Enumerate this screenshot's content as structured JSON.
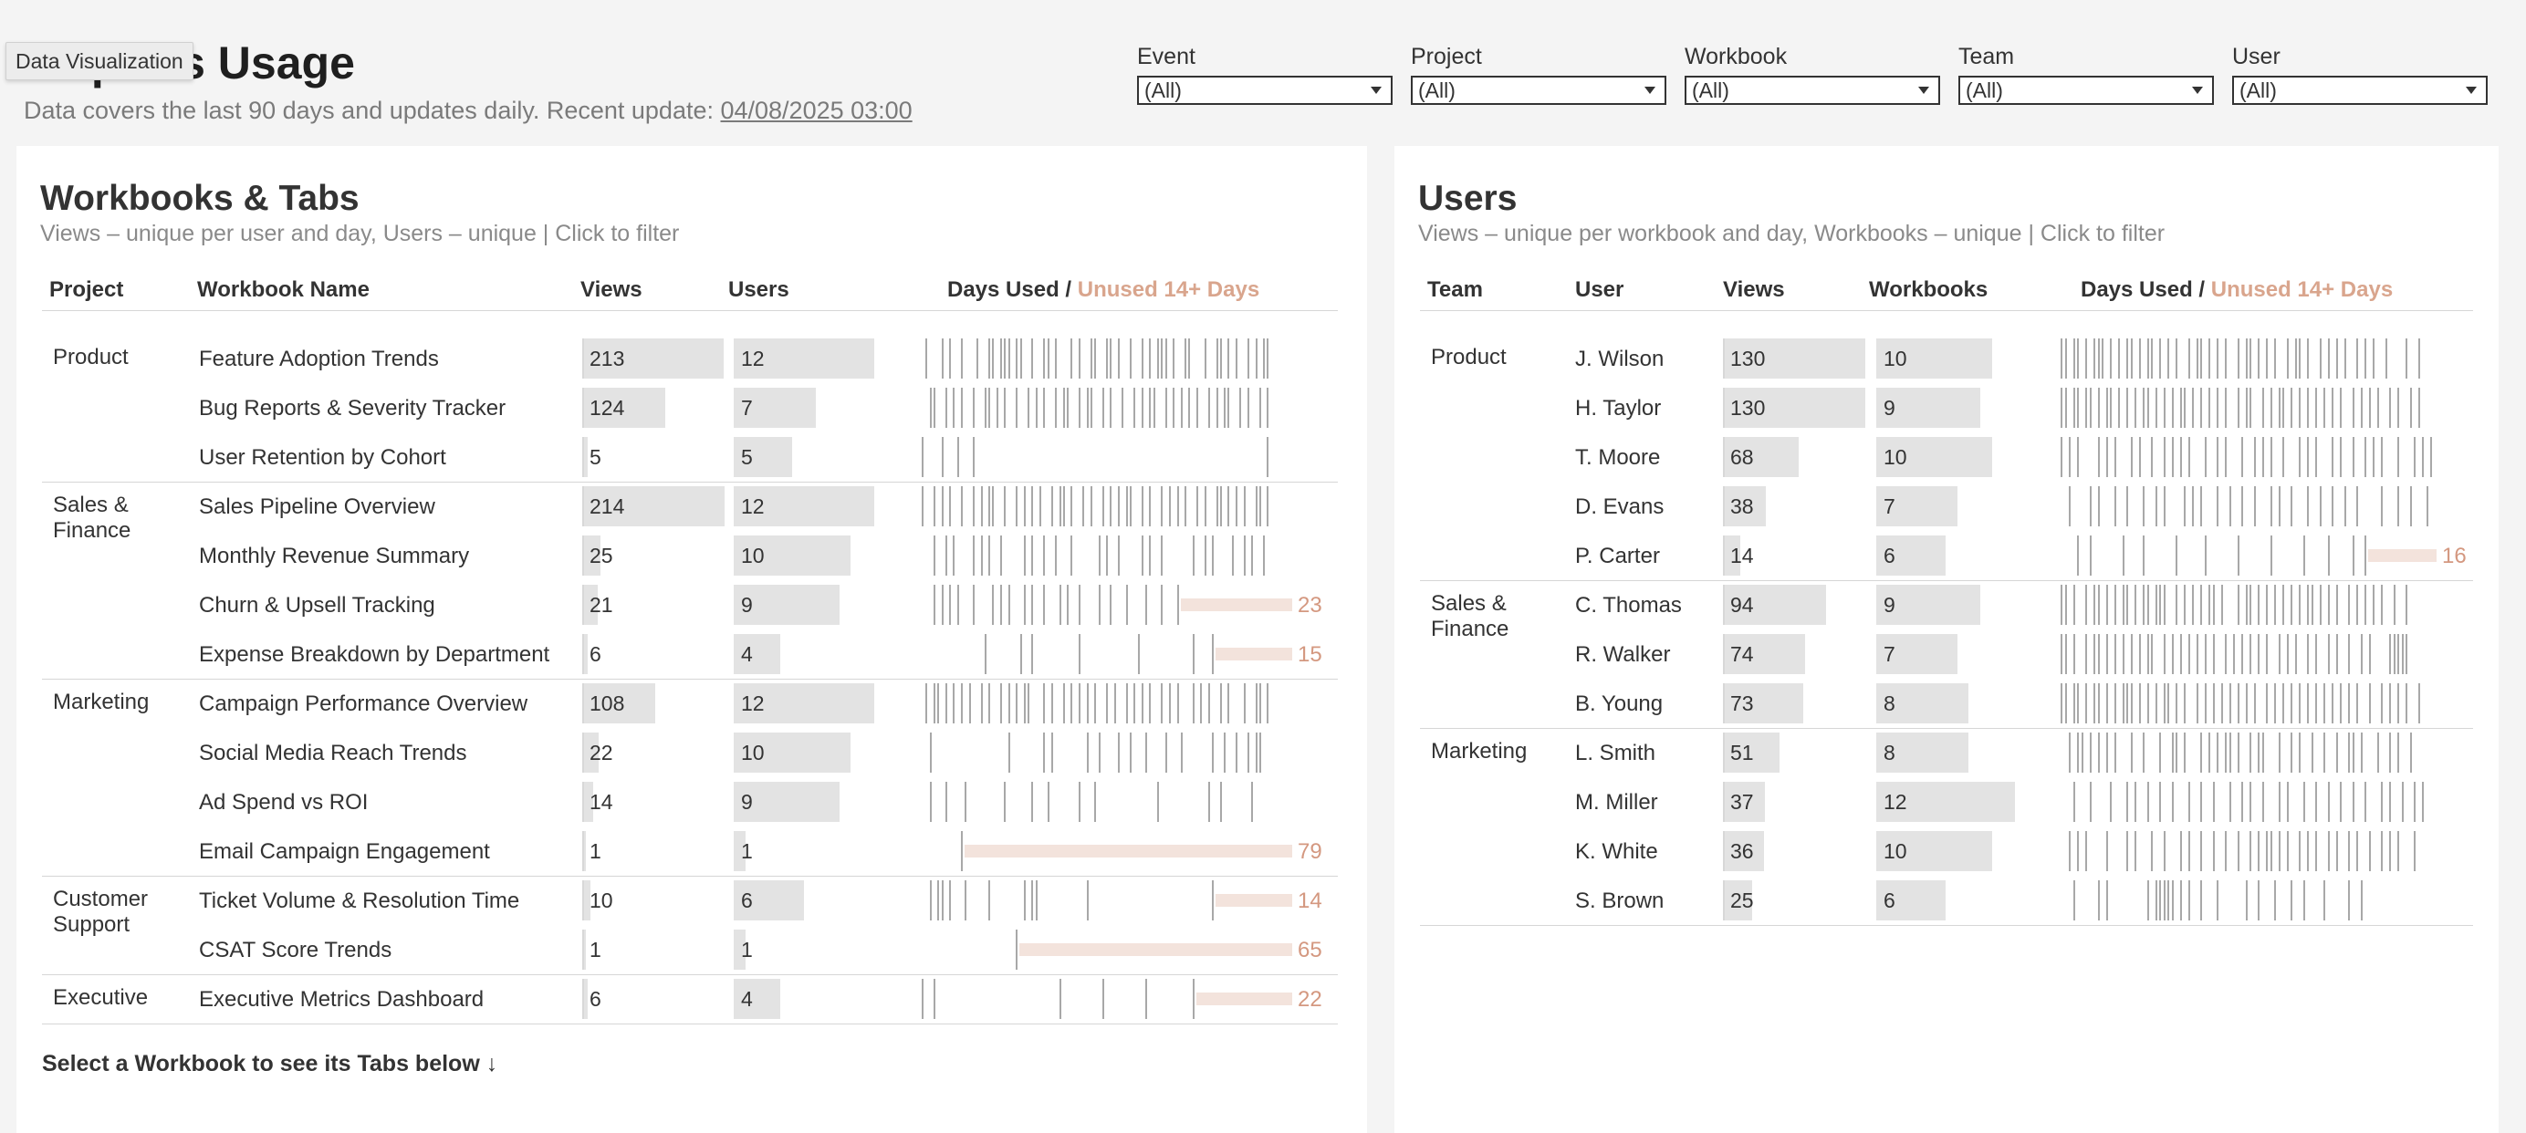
{
  "header": {
    "title": "Reports Usage",
    "tooltip": "Data Visualization",
    "subtitle": "Data covers the last 90 days and updates daily. Recent update: ",
    "update_date": "04/08/2025 03:00"
  },
  "filters": [
    {
      "label": "Event",
      "value": "(All)"
    },
    {
      "label": "Project",
      "value": "(All)"
    },
    {
      "label": "Workbook",
      "value": "(All)"
    },
    {
      "label": "Team",
      "value": "(All)"
    },
    {
      "label": "User",
      "value": "(All)"
    }
  ],
  "workbooks_panel": {
    "title": "Workbooks & Tabs",
    "subtitle": "Views – unique per user and day, Users – unique  |  Click to filter",
    "columns": {
      "project": "Project",
      "name": "Workbook Name",
      "views": "Views",
      "users": "Users",
      "days_used": "Days Used / ",
      "unused": "Unused 14+ Days"
    },
    "max_views": 214,
    "max_users": 12,
    "groups": [
      {
        "project": "Product",
        "rows": [
          {
            "name": "Feature Adoption Trends",
            "views": 213,
            "users": 12,
            "days": "1,5,7,10,14,17,18,20,21,22,24,25,28,31,32,34,38,40,43,44,47,48,50,53,56,58,60,61,62,64,67,68,72,75,76,78,80,83,85,87,88",
            "unused": null
          },
          {
            "name": "Bug Reports & Severity Tracker",
            "views": 124,
            "users": 7,
            "days": "2,3,6,8,10,13,16,17,19,21,24,27,29,31,34,36,37,40,42,43,46,48,51,54,56,58,59,62,64,66,68,70,73,75,77,78,81,83,86,88",
            "unused": null
          },
          {
            "name": "User Retention by Cohort",
            "views": 5,
            "users": 5,
            "days": "0,5,9,13,88",
            "unused": null
          }
        ]
      },
      {
        "project": "Sales & Finance",
        "rows": [
          {
            "name": "Sales Pipeline Overview",
            "views": 214,
            "users": 12,
            "days": "0,3,5,7,10,13,15,17,18,21,24,26,28,30,33,35,36,38,41,43,46,48,50,52,53,56,58,61,63,65,67,70,72,75,76,78,80,82,85,86,88",
            "unused": null
          },
          {
            "name": "Monthly Revenue Summary",
            "views": 25,
            "users": 10,
            "days": "3,6,8,13,15,17,20,26,28,31,34,38,45,47,50,56,58,61,69,72,74,79,82,84,87",
            "unused": null
          },
          {
            "name": "Churn & Upsell Tracking",
            "views": 21,
            "users": 9,
            "days": "3,5,7,9,13,18,20,22,26,28,31,35,37,40,45,48,52,57,61,65",
            "unused": 23
          },
          {
            "name": "Expense Breakdown by Department",
            "views": 6,
            "users": 4,
            "days": "16,25,28,40,55,69,74",
            "unused": 15
          }
        ]
      },
      {
        "project": "Marketing",
        "rows": [
          {
            "name": "Campaign Performance Overview",
            "views": 108,
            "users": 12,
            "days": "1,3,4,6,8,10,12,15,17,20,22,24,26,27,31,33,36,38,40,42,44,47,49,52,54,56,58,61,63,65,69,71,73,76,78,82,85,86,88",
            "unused": null
          },
          {
            "name": "Social Media Reach Trends",
            "views": 22,
            "users": 10,
            "days": "2,22,31,33,42,45,50,53,57,62,66,74,77,80,83,85,86",
            "unused": null
          },
          {
            "name": "Ad Spend vs ROI",
            "views": 14,
            "users": 9,
            "days": "2,6,11,21,28,32,40,44,60,73,76,84",
            "unused": null
          },
          {
            "name": "Email Campaign Engagement",
            "views": 1,
            "users": 1,
            "days": "10",
            "unused": 79
          }
        ]
      },
      {
        "project": "Customer Support",
        "rows": [
          {
            "name": "Ticket Volume & Resolution Time",
            "views": 10,
            "users": 6,
            "days": "2,4,5,7,11,17,26,28,29,42,74",
            "unused": 14
          },
          {
            "name": "CSAT Score Trends",
            "views": 1,
            "users": 1,
            "days": "24",
            "unused": 65
          }
        ]
      },
      {
        "project": "Executive",
        "rows": [
          {
            "name": "Executive Metrics Dashboard",
            "views": 6,
            "users": 4,
            "days": "0,3,35,46,57,69",
            "unused": 22
          }
        ]
      }
    ],
    "select_note": "Select a Workbook to see its Tabs below ↓"
  },
  "users_panel": {
    "title": "Users",
    "subtitle": "Views – unique per workbook and day, Workbooks – unique  |  Click to filter",
    "columns": {
      "team": "Team",
      "user": "User",
      "views": "Views",
      "workbooks": "Workbooks",
      "days_used": "Days Used / ",
      "unused": "Unused 14+ Days"
    },
    "max_views": 130,
    "max_workbooks": 12,
    "groups": [
      {
        "team": "Product",
        "rows": [
          {
            "user": "J. Wilson",
            "views": 130,
            "workbooks": 10,
            "days": "0,1,3,4,6,8,9,10,12,14,16,17,19,21,22,24,26,28,31,33,34,36,38,40,43,45,46,48,50,52,55,57,58,60,63,65,67,69,72,74,76,79,84,87",
            "unused": null
          },
          {
            "user": "H. Taylor",
            "views": 130,
            "workbooks": 9,
            "days": "0,1,3,4,6,7,9,11,12,14,16,18,20,21,23,25,27,29,30,32,34,36,38,40,43,45,46,49,51,53,54,56,58,60,62,64,66,68,71,73,75,77,80,82,85,87",
            "unused": null
          },
          {
            "user": "T. Moore",
            "views": 68,
            "workbooks": 10,
            "days": "0,2,4,9,11,13,17,19,22,25,27,29,31,35,38,40,44,47,49,51,54,58,60,62,66,68,71,74,76,78,82,86,88,90",
            "unused": null
          },
          {
            "user": "D. Evans",
            "views": 38,
            "workbooks": 7,
            "days": "2,7,9,13,16,20,23,25,30,32,34,38,41,44,47,51,53,56,60,63,66,69,72,78,82,85,89",
            "unused": null
          },
          {
            "user": "P. Carter",
            "views": 14,
            "workbooks": 6,
            "days": "4,7,15,20,28,35,43,51,59,65,71,74",
            "unused": 16
          }
        ]
      },
      {
        "team": "Sales & Finance",
        "rows": [
          {
            "user": "C. Thomas",
            "views": 94,
            "workbooks": 9,
            "days": "0,1,3,6,8,9,11,13,15,16,18,20,21,23,24,25,28,30,32,34,36,37,39,43,45,46,48,50,52,54,56,58,60,61,63,65,67,70,72,74,76,78,81,84",
            "unused": null
          },
          {
            "user": "R. Walker",
            "views": 74,
            "workbooks": 7,
            "days": "0,1,3,6,8,9,11,13,15,17,19,21,22,25,27,29,31,33,35,37,40,42,44,46,48,50,53,55,57,60,62,65,67,70,73,75,80,81,82,83,84",
            "unused": null
          },
          {
            "user": "B. Young",
            "views": 73,
            "workbooks": 8,
            "days": "0,1,3,4,6,8,9,11,13,15,16,17,19,21,23,25,26,28,30,33,35,37,39,41,43,45,47,50,52,54,56,58,60,62,64,66,68,70,72,75,78,80,82,84,87",
            "unused": null
          }
        ]
      },
      {
        "team": "Marketing",
        "rows": [
          {
            "user": "L. Smith",
            "views": 51,
            "workbooks": 8,
            "days": "2,4,5,7,9,11,13,17,20,24,27,28,30,34,36,38,40,41,43,46,48,49,53,56,58,61,64,67,70,71,73,77,80,82,85",
            "unused": null
          },
          {
            "user": "M. Miller",
            "views": 37,
            "workbooks": 12,
            "days": "3,7,12,16,18,21,24,27,31,34,37,41,44,46,49,53,55,59,62,65,68,71,74,78,80,83,86,88",
            "unused": null
          },
          {
            "user": "K. White",
            "views": 36,
            "workbooks": 10,
            "days": "2,4,6,11,16,18,22,25,29,31,34,37,40,43,46,48,50,51,53,55,58,60,62,65,67,70,72,75,78,80,82,86",
            "unused": null
          },
          {
            "user": "S. Brown",
            "views": 25,
            "workbooks": 6,
            "days": "3,9,11,21,23,24,25,26,27,29,31,34,38,45,48,52,56,59,64,70,73",
            "unused": null
          }
        ]
      }
    ]
  }
}
